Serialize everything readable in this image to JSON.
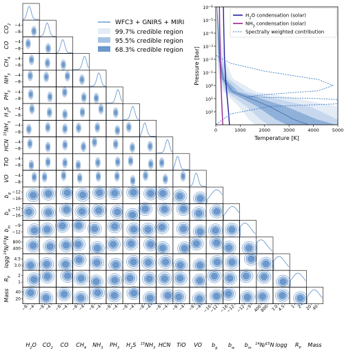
{
  "corner_legend": {
    "entries": [
      {
        "label": "WFC3 + GNIRS + MIRI",
        "kind": "line",
        "color": "#6a9ad0"
      },
      {
        "label": "99.7% credible region",
        "kind": "patch",
        "color": "#e4ecf6"
      },
      {
        "label": "95.5% credible region",
        "kind": "patch",
        "color": "#a8c4e4"
      },
      {
        "label": "68.3% credible region",
        "kind": "patch",
        "color": "#6d98cc"
      }
    ]
  },
  "colors": {
    "posterior": "#3f78b8",
    "posterior_line": "#6a9ad0",
    "h2o_condensation": "#1f1fa0",
    "nh3_condensation": "#9b1f8f",
    "contribution": "#3b78c0"
  },
  "chart_data": [
    {
      "type": "corner",
      "parameters": [
        "H2O",
        "CO2",
        "CO",
        "CH4",
        "NH3",
        "PH3",
        "H2S",
        "15NH3",
        "HCN",
        "TiO",
        "VO",
        "b_g",
        "b_w",
        "b_m",
        "14N/15N",
        "logg",
        "R_P",
        "Mass"
      ],
      "parameter_labels": [
        {
          "base": "H",
          "sub": "2",
          "rest": "O"
        },
        {
          "base": "CO",
          "sub": "2",
          "rest": ""
        },
        {
          "base": "CO",
          "sub": "",
          "rest": ""
        },
        {
          "base": "CH",
          "sub": "4",
          "rest": ""
        },
        {
          "base": "NH",
          "sub": "3",
          "rest": ""
        },
        {
          "base": "PH",
          "sub": "3",
          "rest": ""
        },
        {
          "base": "H",
          "sub": "2",
          "rest": "S"
        },
        {
          "pre_sup": "15",
          "base": "NH",
          "sub": "3",
          "rest": ""
        },
        {
          "base": "HCN",
          "sub": "",
          "rest": ""
        },
        {
          "base": "TiO",
          "sub": "",
          "rest": ""
        },
        {
          "base": "VO",
          "sub": "",
          "rest": ""
        },
        {
          "base": "b",
          "sub": "g",
          "rest": ""
        },
        {
          "base": "b",
          "sub": "w",
          "rest": ""
        },
        {
          "base": "b",
          "sub": "m",
          "rest": ""
        },
        {
          "pre_sup": "14",
          "base": "N/",
          "sup2": "15",
          "rest": "N"
        },
        {
          "base": "logg",
          "sub": "",
          "rest": ""
        },
        {
          "base": "R",
          "sub": "P",
          "rest": ""
        },
        {
          "base": "Mass",
          "sub": "",
          "rest": ""
        }
      ],
      "x_tick_labels": [
        [
          "−8",
          "−4"
        ],
        [
          "−8",
          "−4"
        ],
        [
          "−8",
          "−4"
        ],
        [
          "−8",
          "−4"
        ],
        [
          "−8",
          "−4"
        ],
        [
          "−8",
          "−4"
        ],
        [
          "−8",
          "−4"
        ],
        [
          "−8",
          "−4"
        ],
        [
          "−8",
          "−4"
        ],
        [
          "−8",
          "−4"
        ],
        [
          "−8",
          "−4"
        ],
        [
          "−16",
          "−12"
        ],
        [
          "−16",
          "−12"
        ],
        [
          "−12",
          "−9"
        ],
        [
          "400",
          "800"
        ],
        [
          "3.0",
          "4.5"
        ],
        [
          "1",
          "2"
        ],
        [
          "20",
          "40"
        ]
      ],
      "y_tick_labels": [
        [],
        [
          "−4",
          "−8"
        ],
        [
          "−4",
          "−8"
        ],
        [
          "−4",
          "−8"
        ],
        [
          "−4",
          "−8"
        ],
        [
          "−4",
          "−8"
        ],
        [
          "−4",
          "−8"
        ],
        [
          "−4",
          "−8"
        ],
        [
          "−4",
          "−8"
        ],
        [
          "−4",
          "−8"
        ],
        [
          "−4",
          "−8"
        ],
        [
          "−12",
          "−16"
        ],
        [
          "−12",
          "−16"
        ],
        [
          "−9",
          "−12"
        ],
        [
          "800",
          "400"
        ],
        [
          "4.5",
          "3.0"
        ],
        [
          "2",
          "1"
        ],
        [
          "40",
          "20"
        ]
      ],
      "marginal_peaks": [
        {
          "param": "H2O",
          "peak": -5.0
        },
        {
          "param": "CO2",
          "peak": -6.0
        },
        {
          "param": "CO",
          "peak": -4.5
        },
        {
          "param": "CH4",
          "peak": -5.5
        },
        {
          "param": "NH3",
          "peak": -6.5
        },
        {
          "param": "PH3",
          "peak": -6.0
        },
        {
          "param": "H2S",
          "peak": -4.5
        },
        {
          "param": "15NH3",
          "peak": -6.5
        },
        {
          "param": "HCN",
          "peak": -6.0
        },
        {
          "param": "TiO",
          "peak": -8.5
        },
        {
          "param": "VO",
          "peak": -9.0
        },
        {
          "param": "b_g",
          "peak": -14.0
        },
        {
          "param": "b_w",
          "peak": -12.0
        },
        {
          "param": "b_m",
          "peak": -9.5
        },
        {
          "param": "14N/15N",
          "peak": 500
        },
        {
          "param": "logg",
          "peak": 4.2
        },
        {
          "param": "R_P",
          "peak": 1.0
        },
        {
          "param": "Mass",
          "peak": 25
        }
      ]
    },
    {
      "type": "line",
      "title": "",
      "xlabel": "Temperature [K]",
      "ylabel": "Pressure [bar]",
      "xlim": [
        0,
        5000
      ],
      "ylim_log": [
        1e-06,
        1000.0
      ],
      "y_inverted": true,
      "y_scale": "log",
      "x_ticks": [
        "0",
        "1000",
        "2000",
        "3000",
        "4000",
        "5000"
      ],
      "y_ticks": [
        {
          "base": "10",
          "exp": "−6"
        },
        {
          "base": "10",
          "exp": "−5"
        },
        {
          "base": "10",
          "exp": "−4"
        },
        {
          "base": "10",
          "exp": "−3"
        },
        {
          "base": "10",
          "exp": "−2"
        },
        {
          "base": "10",
          "exp": "−1"
        },
        {
          "base": "10",
          "exp": "0"
        },
        {
          "base": "10",
          "exp": "1"
        },
        {
          "base": "10",
          "exp": "2"
        }
      ],
      "legend": {
        "placement": "top-right",
        "entries": [
          {
            "base": "H",
            "sub": "2",
            "rest": "O condensation (solar)",
            "style": "solid",
            "color": "#1f1fa0"
          },
          {
            "base": "NH",
            "sub": "3",
            "rest": " condensation (solar)",
            "style": "solid",
            "color": "#9b1f8f"
          },
          {
            "base": "Spectrally weighted contribution",
            "sub": "",
            "rest": "",
            "style": "dashed",
            "color": "#3b78c0"
          }
        ]
      },
      "series": [
        {
          "name": "H2O condensation (solar)",
          "points": [
            [
              310,
              1e-06
            ],
            [
              330,
              0.0001
            ],
            [
              360,
              0.01
            ],
            [
              420,
              1
            ],
            [
              520,
              100
            ],
            [
              560,
              1000
            ]
          ]
        },
        {
          "name": "NH3 condensation (solar)",
          "points": [
            [
              150,
              1e-06
            ],
            [
              165,
              0.0001
            ],
            [
              185,
              0.01
            ],
            [
              215,
              1
            ],
            [
              260,
              100
            ],
            [
              285,
              1000
            ]
          ]
        },
        {
          "name": "Spectrally weighted contribution",
          "points": [
            [
              0,
              0.005
            ],
            [
              600,
              0.02
            ],
            [
              2000,
              0.08
            ],
            [
              4200,
              0.35
            ],
            [
              4800,
              1.0
            ],
            [
              4200,
              2.5
            ],
            [
              2000,
              5
            ],
            [
              1300,
              7
            ],
            [
              2000,
              8
            ],
            [
              4200,
              10
            ],
            [
              5000,
              12
            ],
            [
              5000,
              25
            ],
            [
              2200,
              40
            ],
            [
              600,
              150
            ],
            [
              0,
              1000
            ]
          ]
        }
      ],
      "retrieved_profile": [
        [
          50,
          1e-06
        ],
        [
          100,
          0.0001
        ],
        [
          150,
          0.01
        ],
        [
          300,
          0.3
        ],
        [
          700,
          3
        ],
        [
          1300,
          8
        ],
        [
          2200,
          40
        ],
        [
          3200,
          400
        ],
        [
          3800,
          1000
        ]
      ]
    }
  ]
}
